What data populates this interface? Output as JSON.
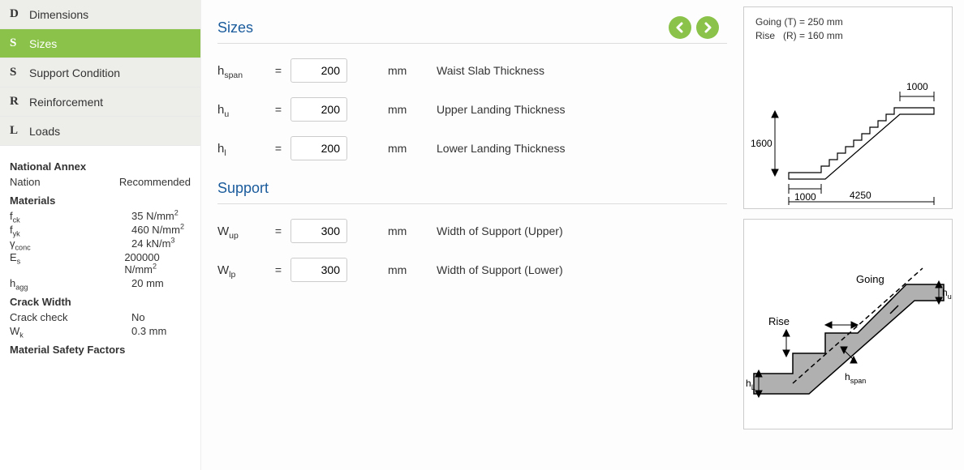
{
  "nav": [
    {
      "letter": "D",
      "label": "Dimensions",
      "active": false
    },
    {
      "letter": "S",
      "label": "Sizes",
      "active": true
    },
    {
      "letter": "S",
      "label": "Support Condition",
      "active": false
    },
    {
      "letter": "R",
      "label": "Reinforcement",
      "active": false
    },
    {
      "letter": "L",
      "label": "Loads",
      "active": false
    }
  ],
  "side": {
    "annex_heading": "National Annex",
    "nation_label": "Nation",
    "nation_value": "Recommended",
    "materials_heading": "Materials",
    "fck_label": "f",
    "fck_sub": "ck",
    "fck_val": "35 N/mm",
    "fck_sup": "2",
    "fyk_label": "f",
    "fyk_sub": "yk",
    "fyk_val": "460 N/mm",
    "fyk_sup": "2",
    "yconc_label": "γ",
    "yconc_sub": "conc",
    "yconc_val": "24 kN/m",
    "yconc_sup": "3",
    "es_label": "E",
    "es_sub": "s",
    "es_val": "200000 N/mm",
    "es_sup": "2",
    "hagg_label": "h",
    "hagg_sub": "agg",
    "hagg_val": "20 mm",
    "crack_heading": "Crack Width",
    "crack_check_label": "Crack check",
    "crack_check_val": "No",
    "wk_label": "W",
    "wk_sub": "k",
    "wk_val": "0.3 mm",
    "msf_heading": "Material Safety Factors"
  },
  "sections": {
    "sizes_title": "Sizes",
    "support_title": "Support",
    "rows": [
      {
        "sym": "h",
        "sub": "span",
        "val": "200",
        "unit": "mm",
        "desc": "Waist Slab Thickness"
      },
      {
        "sym": "h",
        "sub": "u",
        "val": "200",
        "unit": "mm",
        "desc": "Upper Landing Thickness"
      },
      {
        "sym": "h",
        "sub": "l",
        "val": "200",
        "unit": "mm",
        "desc": "Lower Landing Thickness"
      }
    ],
    "support_rows": [
      {
        "sym": "W",
        "sub": "up",
        "val": "300",
        "unit": "mm",
        "desc": "Width of Support (Upper)"
      },
      {
        "sym": "W",
        "sub": "lp",
        "val": "300",
        "unit": "mm",
        "desc": "Width of Support (Lower)"
      }
    ],
    "eq": "="
  },
  "diagram": {
    "note_line1": "Going (T) = 250 mm",
    "note_line2": "Rise   (R) = 160 mm",
    "d_1600": "1600",
    "d_1000a": "1000",
    "d_1000b": "1000",
    "d_4250": "4250",
    "lbl_going": "Going",
    "lbl_rise": "Rise",
    "lbl_hu": "h",
    "lbl_hu_sub": "u",
    "lbl_hl": "h",
    "lbl_hl_sub": "L",
    "lbl_hspan": "h",
    "lbl_hspan_sub": "span"
  },
  "colors": {
    "accent": "#8bc34a",
    "title": "#1a5b9c",
    "stair_fill": "#b0b0b0"
  }
}
